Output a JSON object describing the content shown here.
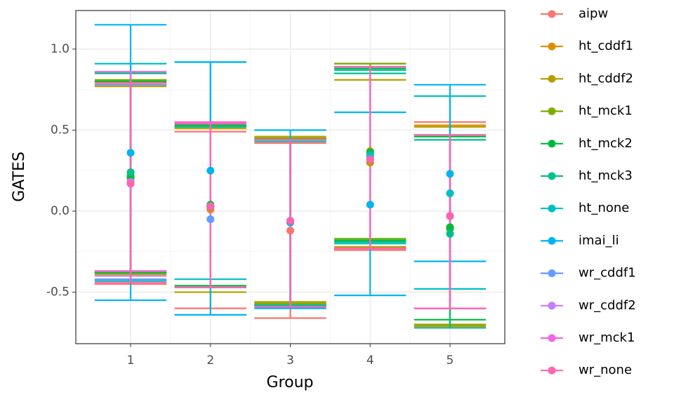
{
  "chart_data": {
    "type": "errorbar",
    "x_label": "Group",
    "y_label": "GATES",
    "x": [
      1,
      2,
      3,
      4,
      5
    ],
    "xlim": [
      0.314,
      5.686
    ],
    "xticks": [
      1,
      2,
      3,
      4,
      5
    ],
    "ylim": [
      -0.818,
      1.238
    ],
    "yticks": [
      {
        "value": -0.5,
        "label": "-0.5"
      },
      {
        "value": 0,
        "label": "0.0"
      },
      0.5,
      {
        "value": 1,
        "label": "1.0"
      }
    ],
    "grid": true,
    "series": [
      {
        "name": "aipw",
        "color": "#F8766D",
        "values": [
          0.18,
          0.01,
          -0.12,
          0.32,
          -0.03
        ],
        "lower": [
          -0.45,
          -0.6,
          -0.66,
          -0.24,
          -0.6
        ],
        "upper": [
          0.8,
          0.49,
          0.42,
          0.89,
          0.55
        ]
      },
      {
        "name": "ht_cddf1",
        "color": "#DE8C00",
        "values": [
          0.21,
          0.03,
          -0.06,
          0.3,
          -0.1
        ],
        "lower": [
          -0.38,
          -0.47,
          -0.57,
          -0.18,
          -0.71
        ],
        "upper": [
          0.8,
          0.53,
          0.45,
          0.91,
          0.53
        ]
      },
      {
        "name": "ht_cddf2",
        "color": "#B79F00",
        "values": [
          0.2,
          0.02,
          -0.06,
          0.3,
          -0.1
        ],
        "lower": [
          -0.39,
          -0.5,
          -0.56,
          -0.22,
          -0.7
        ],
        "upper": [
          0.77,
          0.51,
          0.46,
          0.81,
          0.52
        ]
      },
      {
        "name": "ht_mck1",
        "color": "#7CAE00",
        "values": [
          0.22,
          0.03,
          -0.06,
          0.37,
          -0.11
        ],
        "lower": [
          -0.37,
          -0.47,
          -0.57,
          -0.17,
          -0.7
        ],
        "upper": [
          0.81,
          0.53,
          0.45,
          0.91,
          0.47
        ]
      },
      {
        "name": "ht_mck2",
        "color": "#00BA38",
        "values": [
          0.21,
          0.04,
          -0.06,
          0.36,
          -0.1
        ],
        "lower": [
          -0.38,
          -0.46,
          -0.58,
          -0.18,
          -0.67
        ],
        "upper": [
          0.8,
          0.53,
          0.44,
          0.88,
          0.46
        ]
      },
      {
        "name": "ht_mck3",
        "color": "#00C08B",
        "values": [
          0.24,
          0.03,
          -0.06,
          0.35,
          -0.14
        ],
        "lower": [
          -0.37,
          -0.47,
          -0.58,
          -0.19,
          -0.72
        ],
        "upper": [
          0.85,
          0.52,
          0.44,
          0.85,
          0.44
        ]
      },
      {
        "name": "ht_none",
        "color": "#00BFC4",
        "values": [
          0.18,
          0.03,
          -0.07,
          0.34,
          0.11
        ],
        "lower": [
          -0.43,
          -0.42,
          -0.59,
          -0.2,
          -0.48
        ],
        "upper": [
          0.91,
          0.92,
          0.43,
          0.87,
          0.71
        ]
      },
      {
        "name": "imai_li",
        "color": "#00B4F0",
        "values": [
          0.36,
          0.25,
          -0.07,
          0.04,
          0.23
        ],
        "lower": [
          -0.55,
          -0.64,
          -0.6,
          -0.52,
          -0.31
        ],
        "upper": [
          1.15,
          0.92,
          0.5,
          0.61,
          0.78
        ]
      },
      {
        "name": "wr_cddf1",
        "color": "#619CFF",
        "values": [
          0.18,
          -0.05,
          -0.06,
          0.32,
          -0.03
        ],
        "lower": [
          -0.42,
          -0.47,
          -0.59,
          -0.23,
          -0.6
        ],
        "upper": [
          0.78,
          0.54,
          0.44,
          0.89,
          0.47
        ]
      },
      {
        "name": "wr_cddf2",
        "color": "#C77CFF",
        "values": [
          0.18,
          0.03,
          -0.06,
          0.32,
          -0.03
        ],
        "lower": [
          -0.4,
          -0.47,
          -0.59,
          -0.23,
          -0.6
        ],
        "upper": [
          0.86,
          0.54,
          0.44,
          0.89,
          0.47
        ]
      },
      {
        "name": "wr_mck1",
        "color": "#F564E3",
        "values": [
          0.17,
          0.03,
          -0.06,
          0.32,
          -0.03
        ],
        "lower": [
          -0.37,
          -0.47,
          -0.59,
          -0.23,
          -0.6
        ],
        "upper": [
          0.86,
          0.55,
          0.44,
          0.89,
          0.47
        ]
      },
      {
        "name": "wr_none",
        "color": "#FF64B0",
        "values": [
          0.17,
          0.03,
          -0.06,
          0.32,
          -0.03
        ],
        "lower": [
          -0.44,
          -0.47,
          -0.59,
          -0.23,
          -0.6
        ],
        "upper": [
          0.79,
          0.54,
          0.44,
          0.89,
          0.47
        ]
      }
    ]
  }
}
